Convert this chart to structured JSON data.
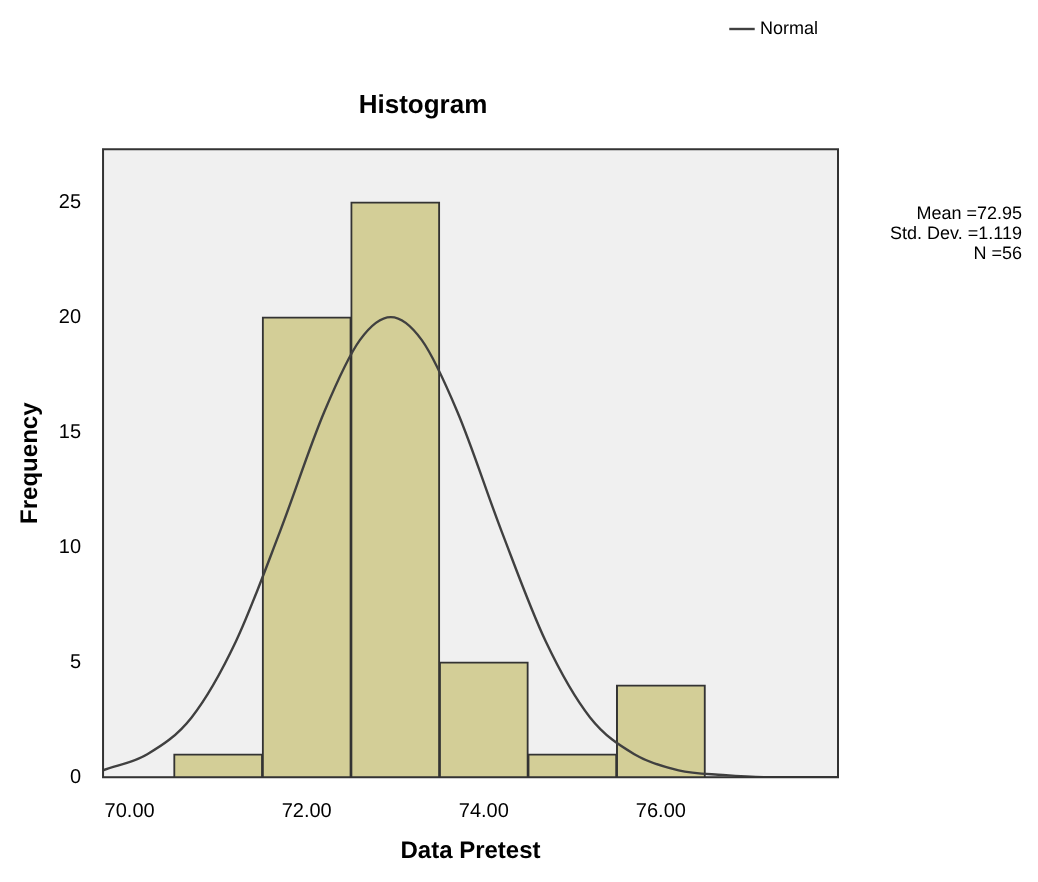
{
  "chart_data": {
    "type": "histogram",
    "title": "Histogram",
    "xlabel": "Data Pretest",
    "ylabel": "Frequency",
    "series": [
      {
        "bins": [
          70.5,
          71.5,
          72.5,
          73.5,
          74.5,
          75.5,
          76.5
        ],
        "values": [
          1,
          20,
          25,
          5,
          1,
          4
        ],
        "color": "#d3ce97"
      },
      {
        "type": "line",
        "name": "Normal",
        "color": "#404040",
        "x": [
          69.7,
          70.2,
          70.7,
          71.2,
          71.7,
          72.2,
          72.6,
          72.95,
          73.3,
          73.7,
          74.2,
          74.7,
          75.2,
          75.7,
          76.2,
          76.7,
          77.2,
          78.0
        ],
        "values": [
          0.3,
          1.0,
          2.6,
          5.9,
          10.7,
          15.9,
          19.0,
          20.0,
          19.0,
          15.9,
          10.7,
          5.9,
          2.6,
          1.0,
          0.3,
          0.1,
          0.0,
          0.0
        ]
      }
    ],
    "xlim": [
      69.7,
      78.0
    ],
    "xticks": [
      {
        "value": 70,
        "label": "70.00"
      },
      {
        "value": 72,
        "label": "72.00"
      },
      {
        "value": 74,
        "label": "74.00"
      },
      {
        "value": 76,
        "label": "76.00"
      }
    ],
    "ylim": [
      0,
      27.3
    ],
    "yticks": [
      0,
      5,
      10,
      15,
      20,
      25
    ],
    "grid": false,
    "legend": "top right",
    "marker": "none",
    "annotations": [
      "Mean =72.95",
      "Std. Dev. =1.119",
      "N =56"
    ]
  }
}
